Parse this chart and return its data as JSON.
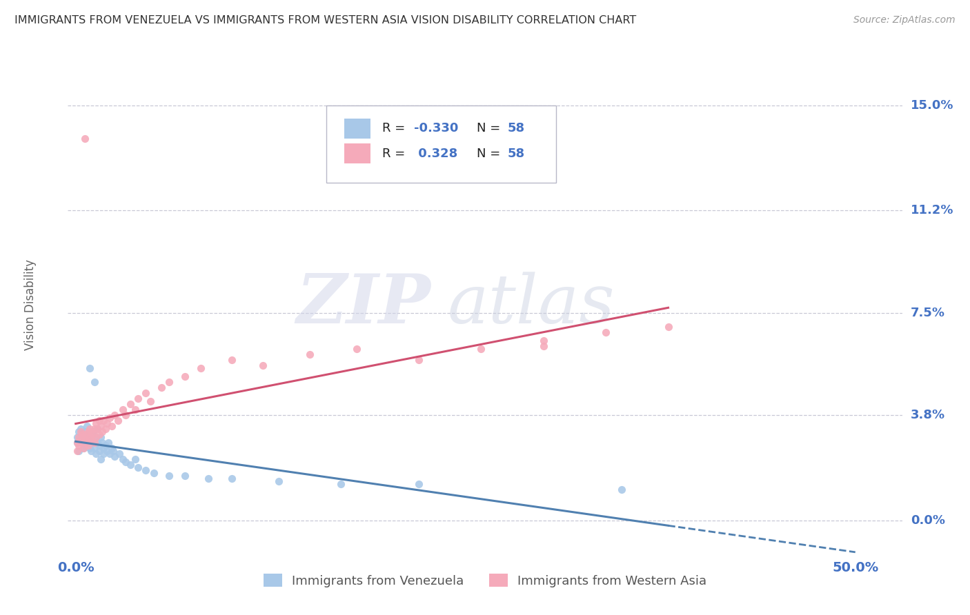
{
  "title": "IMMIGRANTS FROM VENEZUELA VS IMMIGRANTS FROM WESTERN ASIA VISION DISABILITY CORRELATION CHART",
  "source": "Source: ZipAtlas.com",
  "ylabel": "Vision Disability",
  "ytick_positions": [
    0.0,
    0.038,
    0.075,
    0.112,
    0.15
  ],
  "ytick_labels": [
    "0.0%",
    "3.8%",
    "7.5%",
    "11.2%",
    "15.0%"
  ],
  "xtick_positions": [
    0.0,
    0.5
  ],
  "xtick_labels": [
    "0.0%",
    "50.0%"
  ],
  "xlim": [
    -0.005,
    0.53
  ],
  "ylim": [
    -0.012,
    0.168
  ],
  "color_venezuela": "#a8c8e8",
  "color_western_asia": "#f5aaba",
  "line_color_venezuela": "#5080b0",
  "line_color_western_asia": "#d05070",
  "legend_label_venezuela": "Immigrants from Venezuela",
  "legend_label_western_asia": "Immigrants from Western Asia",
  "watermark_zip": "ZIP",
  "watermark_atlas": "atlas",
  "background_color": "#ffffff",
  "grid_color": "#bbbbcc",
  "title_color": "#333333",
  "axis_label_color": "#4472c4",
  "stat_text_color": "#4472c4",
  "scatter_venezuela": [
    [
      0.001,
      0.03
    ],
    [
      0.001,
      0.028
    ],
    [
      0.002,
      0.032
    ],
    [
      0.002,
      0.025
    ],
    [
      0.003,
      0.029
    ],
    [
      0.003,
      0.033
    ],
    [
      0.004,
      0.028
    ],
    [
      0.004,
      0.031
    ],
    [
      0.005,
      0.03
    ],
    [
      0.005,
      0.026
    ],
    [
      0.006,
      0.032
    ],
    [
      0.006,
      0.027
    ],
    [
      0.007,
      0.029
    ],
    [
      0.007,
      0.034
    ],
    [
      0.008,
      0.028
    ],
    [
      0.008,
      0.031
    ],
    [
      0.009,
      0.026
    ],
    [
      0.009,
      0.055
    ],
    [
      0.01,
      0.029
    ],
    [
      0.01,
      0.025
    ],
    [
      0.011,
      0.032
    ],
    [
      0.011,
      0.028
    ],
    [
      0.012,
      0.05
    ],
    [
      0.012,
      0.026
    ],
    [
      0.013,
      0.03
    ],
    [
      0.013,
      0.024
    ],
    [
      0.014,
      0.028
    ],
    [
      0.014,
      0.033
    ],
    [
      0.015,
      0.027
    ],
    [
      0.015,
      0.025
    ],
    [
      0.016,
      0.03
    ],
    [
      0.016,
      0.022
    ],
    [
      0.017,
      0.028
    ],
    [
      0.018,
      0.026
    ],
    [
      0.018,
      0.024
    ],
    [
      0.019,
      0.027
    ],
    [
      0.02,
      0.025
    ],
    [
      0.021,
      0.028
    ],
    [
      0.022,
      0.024
    ],
    [
      0.023,
      0.026
    ],
    [
      0.024,
      0.025
    ],
    [
      0.025,
      0.023
    ],
    [
      0.028,
      0.024
    ],
    [
      0.03,
      0.022
    ],
    [
      0.032,
      0.021
    ],
    [
      0.035,
      0.02
    ],
    [
      0.038,
      0.022
    ],
    [
      0.04,
      0.019
    ],
    [
      0.045,
      0.018
    ],
    [
      0.05,
      0.017
    ],
    [
      0.06,
      0.016
    ],
    [
      0.07,
      0.016
    ],
    [
      0.085,
      0.015
    ],
    [
      0.1,
      0.015
    ],
    [
      0.13,
      0.014
    ],
    [
      0.17,
      0.013
    ],
    [
      0.22,
      0.013
    ],
    [
      0.35,
      0.011
    ]
  ],
  "scatter_western_asia": [
    [
      0.001,
      0.028
    ],
    [
      0.001,
      0.025
    ],
    [
      0.002,
      0.03
    ],
    [
      0.002,
      0.027
    ],
    [
      0.003,
      0.029
    ],
    [
      0.003,
      0.032
    ],
    [
      0.004,
      0.028
    ],
    [
      0.004,
      0.031
    ],
    [
      0.005,
      0.03
    ],
    [
      0.005,
      0.026
    ],
    [
      0.006,
      0.138
    ],
    [
      0.006,
      0.029
    ],
    [
      0.007,
      0.031
    ],
    [
      0.007,
      0.028
    ],
    [
      0.008,
      0.032
    ],
    [
      0.008,
      0.027
    ],
    [
      0.009,
      0.03
    ],
    [
      0.009,
      0.033
    ],
    [
      0.01,
      0.029
    ],
    [
      0.01,
      0.032
    ],
    [
      0.011,
      0.031
    ],
    [
      0.012,
      0.033
    ],
    [
      0.012,
      0.028
    ],
    [
      0.013,
      0.035
    ],
    [
      0.013,
      0.03
    ],
    [
      0.014,
      0.033
    ],
    [
      0.015,
      0.036
    ],
    [
      0.015,
      0.031
    ],
    [
      0.016,
      0.034
    ],
    [
      0.017,
      0.032
    ],
    [
      0.018,
      0.036
    ],
    [
      0.019,
      0.033
    ],
    [
      0.02,
      0.035
    ],
    [
      0.022,
      0.037
    ],
    [
      0.023,
      0.034
    ],
    [
      0.025,
      0.038
    ],
    [
      0.027,
      0.036
    ],
    [
      0.03,
      0.04
    ],
    [
      0.032,
      0.038
    ],
    [
      0.035,
      0.042
    ],
    [
      0.038,
      0.04
    ],
    [
      0.04,
      0.044
    ],
    [
      0.045,
      0.046
    ],
    [
      0.048,
      0.043
    ],
    [
      0.055,
      0.048
    ],
    [
      0.06,
      0.05
    ],
    [
      0.07,
      0.052
    ],
    [
      0.08,
      0.055
    ],
    [
      0.1,
      0.058
    ],
    [
      0.12,
      0.056
    ],
    [
      0.15,
      0.06
    ],
    [
      0.18,
      0.062
    ],
    [
      0.22,
      0.058
    ],
    [
      0.26,
      0.062
    ],
    [
      0.3,
      0.065
    ],
    [
      0.34,
      0.068
    ],
    [
      0.38,
      0.07
    ],
    [
      0.3,
      0.063
    ]
  ]
}
